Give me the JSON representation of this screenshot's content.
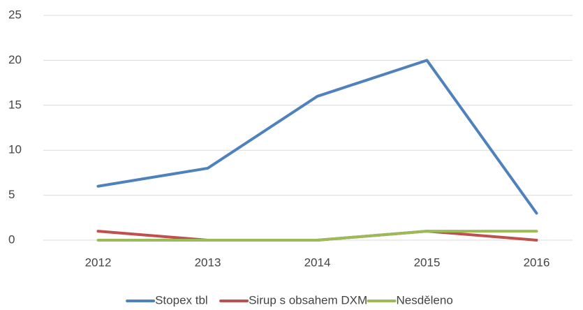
{
  "chart_data": {
    "type": "line",
    "categories": [
      "2012",
      "2013",
      "2014",
      "2015",
      "2016"
    ],
    "series": [
      {
        "name": "Stopex tbl",
        "color": "#4f81bd",
        "values": [
          6,
          8,
          16,
          20,
          3
        ]
      },
      {
        "name": "Sirup s obsahem DXM",
        "color": "#c0504d",
        "values": [
          1,
          0,
          0,
          1,
          0
        ]
      },
      {
        "name": "Nesděleno",
        "color": "#9bbb59",
        "values": [
          0,
          0,
          0,
          1,
          1
        ]
      }
    ],
    "ylim": [
      0,
      25
    ],
    "yticks": [
      0,
      5,
      10,
      15,
      20,
      25
    ],
    "grid": true,
    "legend": "bottom"
  }
}
